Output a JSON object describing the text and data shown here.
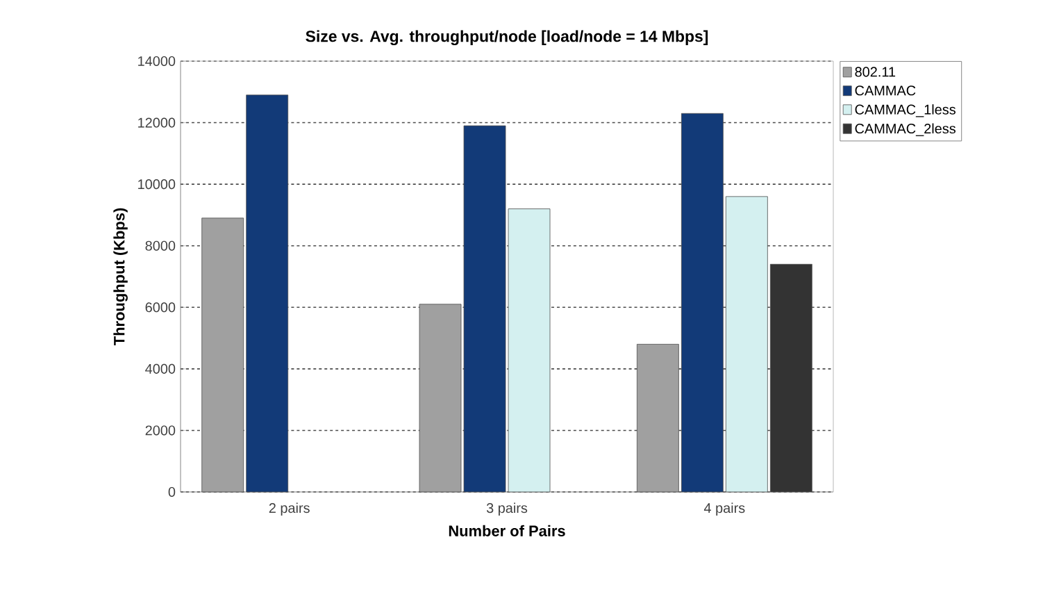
{
  "chart_data": {
    "type": "bar",
    "title": "Size vs. Avg. throughput/node [load/node = 14 Mbps]",
    "xlabel": "Number of Pairs",
    "ylabel": "Throughput (Kbps)",
    "categories": [
      "2 pairs",
      "3 pairs",
      "4 pairs"
    ],
    "series": [
      {
        "name": "802.11",
        "color": "#a0a0a0",
        "values": [
          8900,
          6100,
          4800
        ]
      },
      {
        "name": "CAMMAC",
        "color": "#123a78",
        "values": [
          12900,
          11900,
          12300
        ]
      },
      {
        "name": "CAMMAC_1less",
        "color": "#d4f0f0",
        "values": [
          null,
          9200,
          9600
        ]
      },
      {
        "name": "CAMMAC_2less",
        "color": "#333333",
        "values": [
          null,
          null,
          7400
        ]
      }
    ],
    "ylim": [
      0,
      14000
    ],
    "yticks": [
      0,
      2000,
      4000,
      6000,
      8000,
      10000,
      12000,
      14000
    ],
    "grid": "y",
    "legend": "top right"
  }
}
